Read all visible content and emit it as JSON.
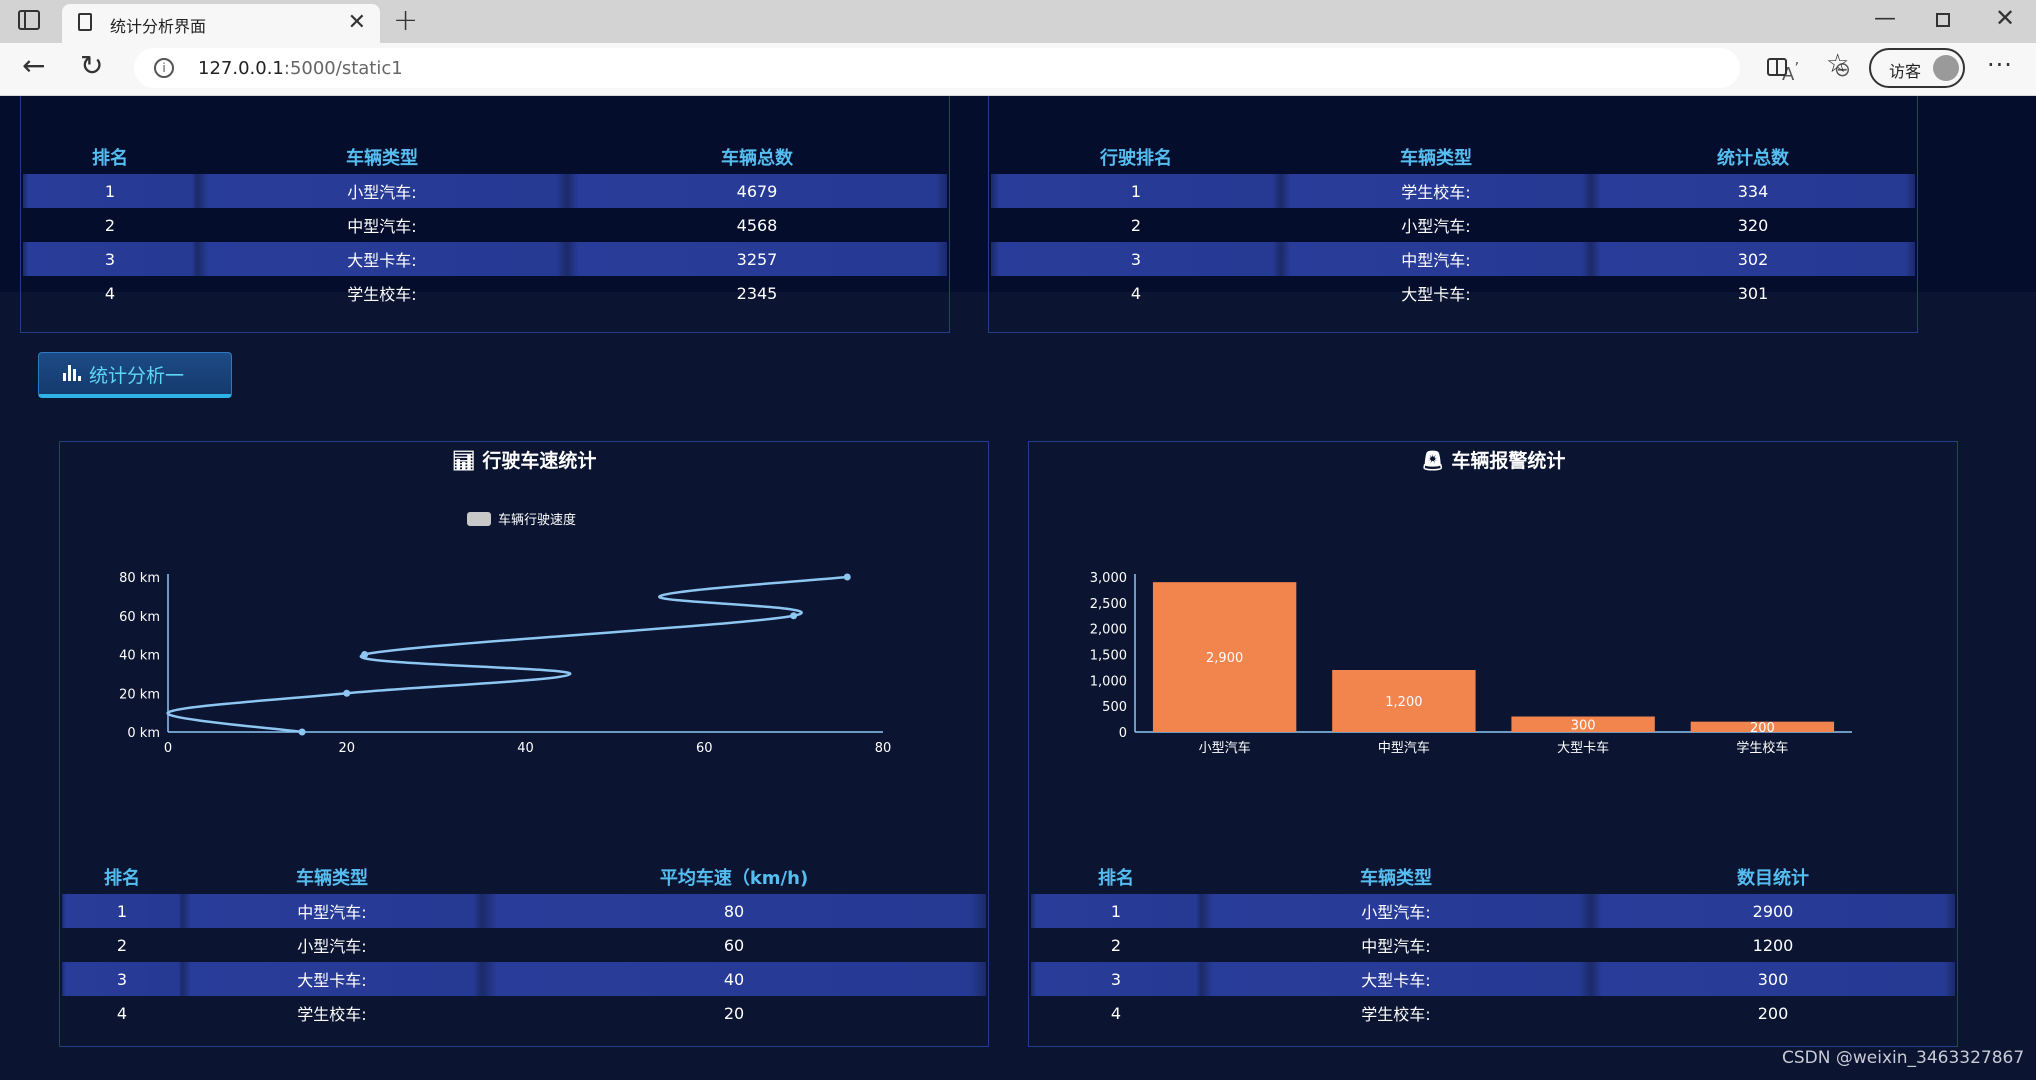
{
  "browser": {
    "tab_title": "统计分析界面",
    "url_host": "127.0.0.1",
    "url_rest": ":5000/static1",
    "profile_label": "访客"
  },
  "top_left_table": {
    "headers": [
      "排名",
      "车辆类型",
      "车辆总数"
    ],
    "rows": [
      [
        "1",
        "小型汽车:",
        "4679"
      ],
      [
        "2",
        "中型汽车:",
        "4568"
      ],
      [
        "3",
        "大型卡车:",
        "3257"
      ],
      [
        "4",
        "学生校车:",
        "2345"
      ]
    ]
  },
  "top_right_table": {
    "headers": [
      "行驶排名",
      "车辆类型",
      "统计总数"
    ],
    "rows": [
      [
        "1",
        "学生校车:",
        "334"
      ],
      [
        "2",
        "小型汽车:",
        "320"
      ],
      [
        "3",
        "中型汽车:",
        "302"
      ],
      [
        "4",
        "大型卡车:",
        "301"
      ]
    ]
  },
  "section_button": {
    "label": "统计分析一"
  },
  "speed_panel": {
    "title": "行驶车速统计",
    "table": {
      "headers": [
        "排名",
        "车辆类型",
        "平均车速（km/h)"
      ],
      "rows": [
        [
          "1",
          "中型汽车:",
          "80"
        ],
        [
          "2",
          "小型汽车:",
          "60"
        ],
        [
          "3",
          "大型卡车:",
          "40"
        ],
        [
          "4",
          "学生校车:",
          "20"
        ]
      ]
    }
  },
  "alarm_panel": {
    "title": "车辆报警统计",
    "table": {
      "headers": [
        "排名",
        "车辆类型",
        "数目统计"
      ],
      "rows": [
        [
          "1",
          "小型汽车:",
          "2900"
        ],
        [
          "2",
          "中型汽车:",
          "1200"
        ],
        [
          "3",
          "大型卡车:",
          "300"
        ],
        [
          "4",
          "学生校车:",
          "200"
        ]
      ]
    }
  },
  "chart_data": [
    {
      "type": "line",
      "legend": "车辆行驶速度",
      "legend_position": "top",
      "x": [
        15,
        0,
        20,
        45,
        22,
        70,
        55,
        76
      ],
      "y": [
        0,
        10,
        20,
        30,
        40,
        60,
        70,
        80
      ],
      "marked_points": [
        [
          15,
          0
        ],
        [
          20,
          20
        ],
        [
          22,
          40
        ],
        [
          70,
          60
        ],
        [
          76,
          80
        ]
      ],
      "xlim": [
        0,
        80
      ],
      "ylim": [
        0,
        80
      ],
      "x_ticks": [
        "0",
        "20",
        "40",
        "60",
        "80"
      ],
      "y_ticks": [
        "0 km",
        "20 km",
        "40 km",
        "60 km",
        "80 km"
      ],
      "grid": false,
      "line_color": "#8ec6f2"
    },
    {
      "type": "bar",
      "categories": [
        "小型汽车",
        "中型汽车",
        "大型卡车",
        "学生校车"
      ],
      "values": [
        2900,
        1200,
        300,
        200
      ],
      "data_labels": [
        "2,900",
        "1,200",
        "300",
        "200"
      ],
      "ylim": [
        0,
        3000
      ],
      "y_ticks": [
        "0",
        "500",
        "1,000",
        "1,500",
        "2,000",
        "2,500",
        "3,000"
      ],
      "grid": false,
      "bar_color": "#f2844e"
    }
  ],
  "watermark": "CSDN @weixin_3463327867"
}
